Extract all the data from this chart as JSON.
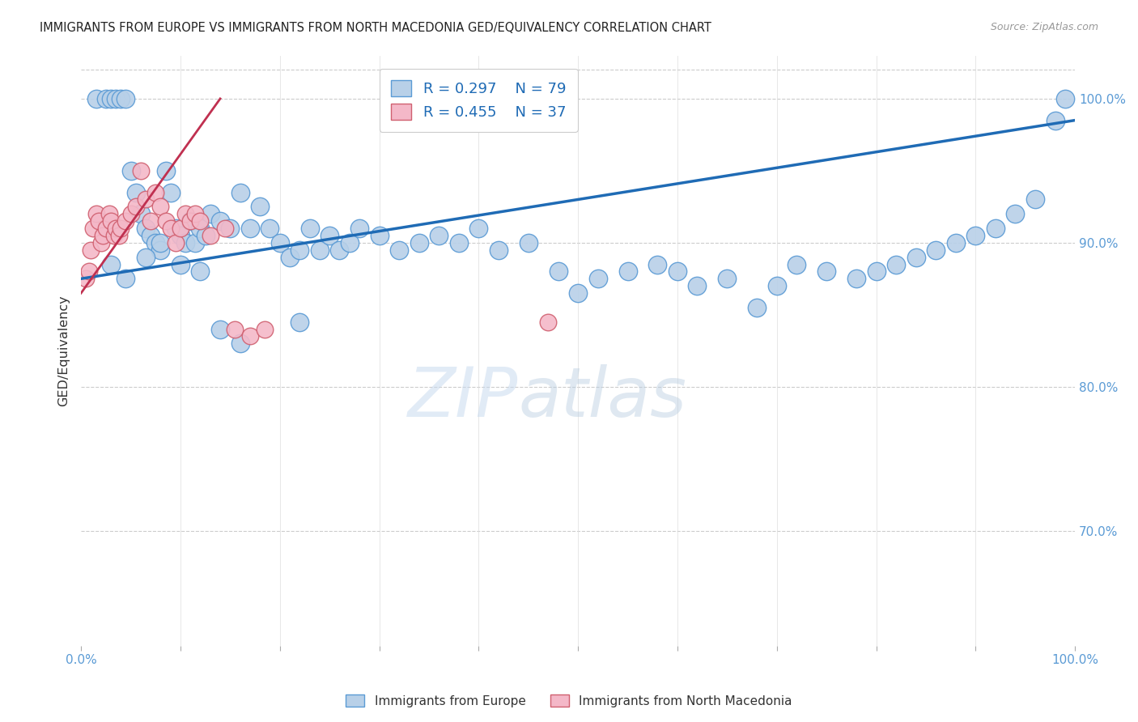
{
  "title": "IMMIGRANTS FROM EUROPE VS IMMIGRANTS FROM NORTH MACEDONIA GED/EQUIVALENCY CORRELATION CHART",
  "source": "Source: ZipAtlas.com",
  "ylabel": "GED/Equivalency",
  "right_yticks": [
    70.0,
    80.0,
    90.0,
    100.0
  ],
  "legend_blue_r": "R = 0.297",
  "legend_blue_n": "N = 79",
  "legend_pink_r": "R = 0.455",
  "legend_pink_n": "N = 37",
  "blue_color": "#b8d0e8",
  "blue_edge_color": "#5b9bd5",
  "pink_color": "#f4b8c8",
  "pink_edge_color": "#d06070",
  "blue_line_color": "#1f6bb5",
  "pink_line_color": "#c03050",
  "watermark_zip": "ZIP",
  "watermark_atlas": "atlas",
  "xmin": 0.0,
  "xmax": 100.0,
  "ymin": 62.0,
  "ymax": 103.0,
  "blue_trend_x0": 0.0,
  "blue_trend_y0": 87.5,
  "blue_trend_x1": 100.0,
  "blue_trend_y1": 98.5,
  "pink_trend_x0": 0.0,
  "pink_trend_y0": 86.5,
  "pink_trend_x1": 14.0,
  "pink_trend_y1": 100.0,
  "blue_points_x": [
    1.5,
    2.5,
    3.0,
    3.5,
    4.0,
    4.5,
    5.0,
    5.5,
    6.0,
    6.5,
    7.0,
    7.5,
    8.0,
    8.5,
    9.0,
    9.5,
    10.0,
    10.5,
    11.0,
    11.5,
    12.0,
    12.5,
    13.0,
    14.0,
    15.0,
    16.0,
    17.0,
    18.0,
    19.0,
    20.0,
    21.0,
    22.0,
    23.0,
    24.0,
    25.0,
    26.0,
    27.0,
    28.0,
    30.0,
    32.0,
    34.0,
    36.0,
    38.0,
    40.0,
    42.0,
    45.0,
    48.0,
    50.0,
    52.0,
    55.0,
    58.0,
    60.0,
    62.0,
    65.0,
    68.0,
    70.0,
    72.0,
    75.0,
    78.0,
    80.0,
    82.0,
    84.0,
    86.0,
    88.0,
    90.0,
    92.0,
    94.0,
    96.0,
    98.0,
    99.0,
    3.0,
    4.5,
    6.5,
    8.0,
    10.0,
    12.0,
    14.0,
    16.0,
    22.0
  ],
  "blue_points_y": [
    100.0,
    100.0,
    100.0,
    100.0,
    100.0,
    100.0,
    95.0,
    93.5,
    92.0,
    91.0,
    90.5,
    90.0,
    89.5,
    95.0,
    93.5,
    91.0,
    90.5,
    90.0,
    91.5,
    90.0,
    91.0,
    90.5,
    92.0,
    91.5,
    91.0,
    93.5,
    91.0,
    92.5,
    91.0,
    90.0,
    89.0,
    89.5,
    91.0,
    89.5,
    90.5,
    89.5,
    90.0,
    91.0,
    90.5,
    89.5,
    90.0,
    90.5,
    90.0,
    91.0,
    89.5,
    90.0,
    88.0,
    86.5,
    87.5,
    88.0,
    88.5,
    88.0,
    87.0,
    87.5,
    85.5,
    87.0,
    88.5,
    88.0,
    87.5,
    88.0,
    88.5,
    89.0,
    89.5,
    90.0,
    90.5,
    91.0,
    92.0,
    93.0,
    98.5,
    100.0,
    88.5,
    87.5,
    89.0,
    90.0,
    88.5,
    88.0,
    84.0,
    83.0,
    84.5
  ],
  "pink_points_x": [
    0.5,
    0.8,
    1.0,
    1.2,
    1.5,
    1.8,
    2.0,
    2.2,
    2.5,
    2.8,
    3.0,
    3.3,
    3.5,
    3.8,
    4.0,
    4.5,
    5.0,
    5.5,
    6.0,
    6.5,
    7.0,
    7.5,
    8.0,
    8.5,
    9.0,
    9.5,
    10.0,
    10.5,
    11.0,
    11.5,
    12.0,
    13.0,
    14.5,
    15.5,
    17.0,
    18.5,
    47.0
  ],
  "pink_points_y": [
    87.5,
    88.0,
    89.5,
    91.0,
    92.0,
    91.5,
    90.0,
    90.5,
    91.0,
    92.0,
    91.5,
    90.5,
    91.0,
    90.5,
    91.0,
    91.5,
    92.0,
    92.5,
    95.0,
    93.0,
    91.5,
    93.5,
    92.5,
    91.5,
    91.0,
    90.0,
    91.0,
    92.0,
    91.5,
    92.0,
    91.5,
    90.5,
    91.0,
    84.0,
    83.5,
    84.0,
    84.5
  ]
}
